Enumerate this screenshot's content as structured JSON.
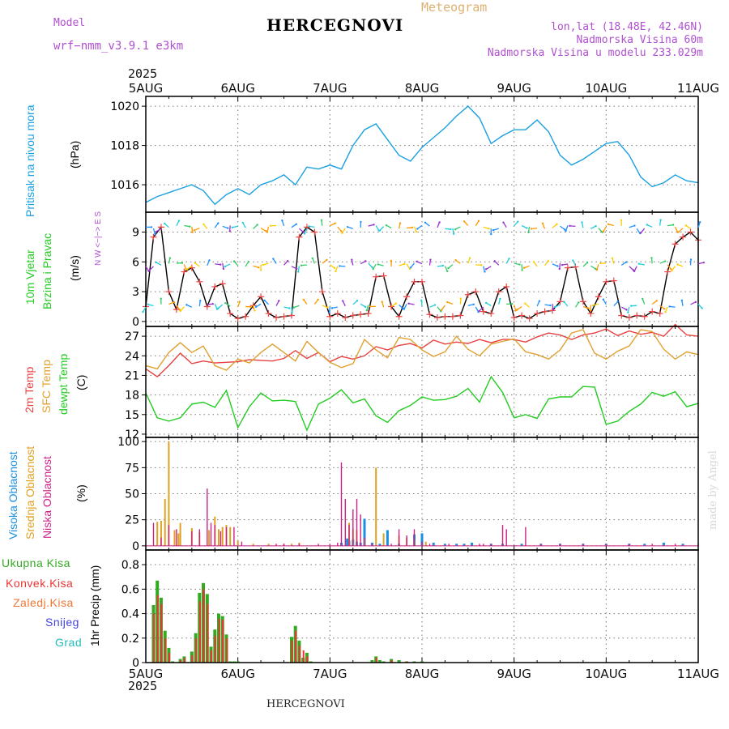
{
  "header": {
    "model_label": "Model",
    "model_name": "wrf−nmm_v3.9.1  e3km",
    "title": "HERCEGNOVI",
    "product": "Meteogram",
    "lonlat": "lon,lat (18.48E, 42.46N)",
    "elevation": "Nadmorska Visina 60m",
    "model_elevation": "Nadmorska Visina u modelu 233.029m",
    "year": "2025",
    "footer": "HERCEGNOVI",
    "credit": "made by Angel"
  },
  "colors": {
    "pressure": "#1aa0e0",
    "wind_speed": "#000000",
    "wind_marker": "#ee4444",
    "t2m": "#e84040",
    "sfc": "#e0a030",
    "dewpoint": "#22cc22",
    "high_cloud": "#1a90e0",
    "mid_cloud": "#e0a020",
    "low_cloud": "#cc2288",
    "total_precip": "#33aa22",
    "conv_precip": "#ee3333",
    "snow": "#4444dd",
    "hail": "#22bbbb"
  },
  "chart_data": [
    {
      "type": "line",
      "id": "pressure",
      "ylabel_name": "Pritisak na nivou mora",
      "ylabel_unit": "(hPa)",
      "ylim": [
        1014.6,
        1020.5
      ],
      "yticks": [
        1016,
        1018,
        1020
      ],
      "grid": true,
      "x_range": [
        0,
        144
      ],
      "x_categories": [
        "5AUG",
        "6AUG",
        "7AUG",
        "8AUG",
        "9AUG",
        "10AUG",
        "11AUG"
      ],
      "x_tick_positions": [
        0,
        24,
        48,
        72,
        96,
        120,
        144
      ],
      "series": [
        {
          "name": "MSLP",
          "x": [
            0,
            3,
            6,
            9,
            12,
            15,
            18,
            21,
            24,
            27,
            30,
            33,
            36,
            39,
            42,
            45,
            48,
            51,
            54,
            57,
            60,
            63,
            66,
            69,
            72,
            75,
            78,
            81,
            84,
            87,
            90,
            93,
            96,
            99,
            102,
            105,
            108,
            111,
            114,
            117,
            120,
            123,
            126,
            129,
            132,
            135,
            138,
            141,
            144
          ],
          "values": [
            1015.1,
            1015.4,
            1015.6,
            1015.8,
            1016.0,
            1015.7,
            1015.0,
            1015.5,
            1015.8,
            1015.5,
            1016.0,
            1016.2,
            1016.5,
            1016.0,
            1016.9,
            1016.8,
            1017.0,
            1016.8,
            1018.0,
            1018.8,
            1019.1,
            1018.3,
            1017.5,
            1017.2,
            1017.9,
            1018.4,
            1018.9,
            1019.5,
            1020.0,
            1019.4,
            1018.1,
            1018.5,
            1018.8,
            1018.8,
            1019.3,
            1018.7,
            1017.5,
            1017.0,
            1017.3,
            1017.7,
            1018.1,
            1018.2,
            1017.5,
            1016.4,
            1015.9,
            1016.1,
            1016.5,
            1016.2,
            1016.1
          ]
        }
      ]
    },
    {
      "type": "line",
      "id": "wind",
      "ylabel_name": "10m Vjetar",
      "ylabel_name2": "Brzina i Pravac",
      "ylabel_unit": "(m/s)",
      "compass": "N  W <−|−> E  S",
      "ylim": [
        -0.5,
        11
      ],
      "yticks": [
        0,
        3,
        6,
        9
      ],
      "grid": true,
      "x_range": [
        0,
        144
      ],
      "series": [
        {
          "name": "10m wind speed",
          "x": [
            0,
            2,
            4,
            6,
            8,
            10,
            12,
            14,
            16,
            18,
            20,
            22,
            24,
            26,
            28,
            30,
            32,
            34,
            36,
            38,
            40,
            42,
            44,
            46,
            48,
            50,
            52,
            54,
            56,
            58,
            60,
            62,
            64,
            66,
            68,
            70,
            72,
            74,
            76,
            78,
            80,
            82,
            84,
            86,
            88,
            90,
            92,
            94,
            96,
            98,
            100,
            102,
            104,
            106,
            108,
            110,
            112,
            114,
            116,
            118,
            120,
            122,
            124,
            126,
            128,
            130,
            132,
            134,
            136,
            138,
            140,
            142,
            144
          ],
          "values": [
            1.5,
            8.5,
            9.5,
            3,
            1.2,
            5,
            5.4,
            4,
            1.5,
            3.5,
            3.8,
            0.8,
            0.3,
            0.5,
            1.6,
            2.5,
            0.8,
            0.4,
            0.5,
            0.6,
            8.5,
            9.5,
            9,
            3,
            0.5,
            0.8,
            0.4,
            0.6,
            0.7,
            0.8,
            4.5,
            4.6,
            1.5,
            0.5,
            2.5,
            4,
            4,
            0.7,
            0.4,
            0.5,
            0.5,
            0.6,
            2.7,
            3,
            1,
            0.8,
            3,
            3.5,
            0.4,
            0.6,
            0.3,
            0.8,
            1,
            1.1,
            2,
            5.4,
            5.5,
            2,
            0.8,
            2.5,
            4,
            4.1,
            0.6,
            0.4,
            0.6,
            0.5,
            1,
            0.8,
            5,
            7.8,
            8.5,
            9,
            8.2
          ]
        }
      ]
    },
    {
      "type": "line",
      "id": "temperature",
      "ylabel_names": [
        "2m Temp",
        "SFC Temp",
        "dewpt Temp"
      ],
      "ylabel_unit": "(C)",
      "ylim": [
        11.5,
        28.5
      ],
      "yticks": [
        12,
        15,
        18,
        21,
        24,
        27
      ],
      "grid": true,
      "x_range": [
        0,
        144
      ],
      "series": [
        {
          "name": "2m Temp",
          "x": [
            0,
            3,
            6,
            9,
            12,
            15,
            18,
            21,
            24,
            27,
            30,
            33,
            36,
            39,
            42,
            45,
            48,
            51,
            54,
            57,
            60,
            63,
            66,
            69,
            72,
            75,
            78,
            81,
            84,
            87,
            90,
            93,
            96,
            99,
            102,
            105,
            108,
            111,
            114,
            117,
            120,
            123,
            126,
            129,
            132,
            135,
            138,
            141,
            144
          ],
          "values": [
            22,
            20.8,
            22.5,
            24.4,
            22.8,
            23.2,
            22.9,
            23,
            23.1,
            23.4,
            23.3,
            23.2,
            23.6,
            24.8,
            23.6,
            24.5,
            23.1,
            23.9,
            23.5,
            24,
            25.4,
            24.9,
            25.6,
            25.9,
            25.2,
            26.4,
            25.8,
            26.1,
            25.9,
            26.5,
            26,
            26.5,
            26.5,
            26.1,
            26.9,
            27.5,
            27.2,
            26.5,
            27.2,
            27.5,
            28.1,
            27.1,
            27.8,
            27.3,
            27.6,
            27,
            28.8,
            27.2,
            27
          ]
        },
        {
          "name": "SFC Temp",
          "x": [
            0,
            3,
            6,
            9,
            12,
            15,
            18,
            21,
            24,
            27,
            30,
            33,
            36,
            39,
            42,
            45,
            48,
            51,
            54,
            57,
            60,
            63,
            66,
            69,
            72,
            75,
            78,
            81,
            84,
            87,
            90,
            93,
            96,
            99,
            102,
            105,
            108,
            111,
            114,
            117,
            120,
            123,
            126,
            129,
            132,
            135,
            138,
            141,
            144
          ],
          "values": [
            22.5,
            22,
            24.5,
            26,
            24.5,
            25.5,
            22.5,
            21.8,
            23.5,
            22.9,
            24.5,
            25.8,
            24.5,
            23.2,
            26.2,
            24.5,
            23,
            22.2,
            22.8,
            26.5,
            24.9,
            23.7,
            26.8,
            26.5,
            24.9,
            23.9,
            24.6,
            27,
            25,
            24,
            25.8,
            26.2,
            26.6,
            24.6,
            24.2,
            23.5,
            24.9,
            27.5,
            28,
            24.4,
            23.5,
            24.7,
            25.5,
            28,
            27.7,
            25,
            23.5,
            24.6,
            24.2
          ]
        },
        {
          "name": "dewpt Temp",
          "x": [
            0,
            3,
            6,
            9,
            12,
            15,
            18,
            21,
            24,
            27,
            30,
            33,
            36,
            39,
            42,
            45,
            48,
            51,
            54,
            57,
            60,
            63,
            66,
            69,
            72,
            75,
            78,
            81,
            84,
            87,
            90,
            93,
            96,
            99,
            102,
            105,
            108,
            111,
            114,
            117,
            120,
            123,
            126,
            129,
            132,
            135,
            138,
            141,
            144
          ],
          "values": [
            18.3,
            14.5,
            14,
            14.5,
            16.6,
            16.9,
            16.1,
            18.7,
            13,
            16.2,
            18.3,
            17.1,
            17.2,
            17,
            12.6,
            16.6,
            17.5,
            18.8,
            16.8,
            17.4,
            14.8,
            13.8,
            15.6,
            16.4,
            17.7,
            17.2,
            17.3,
            17.8,
            19,
            16.9,
            20.8,
            18.4,
            14.5,
            15,
            14.4,
            17.4,
            17.7,
            17.7,
            19.3,
            19.2,
            13.5,
            14,
            15.5,
            16.6,
            18.4,
            17.8,
            18.5,
            16.2,
            16.7
          ]
        }
      ]
    },
    {
      "type": "bar",
      "id": "cloud",
      "ylabel_names": [
        "Visoka Oblacnost",
        "Srednja Oblacnost",
        "Niska Oblacnost"
      ],
      "ylabel_unit": "(%)",
      "ylim": [
        -4,
        104
      ],
      "yticks": [
        0,
        25,
        50,
        75,
        100
      ],
      "grid": true,
      "x_range": [
        0,
        144
      ],
      "series": [
        {
          "name": "Visoka Oblacnost",
          "x": [
            51,
            52.5,
            53,
            54,
            55,
            56,
            57,
            59,
            61,
            63,
            66,
            70,
            72,
            75,
            78,
            81,
            83,
            85,
            90,
            93,
            98,
            103,
            108,
            114,
            120,
            126,
            130,
            135,
            140
          ],
          "values": [
            3,
            7,
            5,
            6,
            4,
            3,
            26,
            3,
            2,
            15,
            2,
            11,
            12,
            3,
            2,
            2,
            2,
            3,
            2,
            2,
            2,
            2,
            2,
            2,
            2,
            2,
            2,
            3,
            2
          ]
        },
        {
          "name": "Srednja Oblacnost",
          "x": [
            3,
            4,
            5,
            6,
            7.5,
            8.5,
            9,
            12,
            14,
            16.5,
            18,
            19,
            20,
            21,
            22,
            24,
            28,
            32,
            36,
            38,
            40,
            53,
            54,
            55,
            57,
            60,
            62,
            66,
            68,
            70,
            73
          ],
          "values": [
            23,
            24,
            45,
            100,
            15,
            12,
            22,
            17,
            13,
            15,
            28,
            16,
            18,
            20,
            18,
            5,
            2,
            2,
            2,
            2,
            3,
            22,
            16,
            15,
            7,
            75,
            12,
            10,
            8,
            6,
            4
          ]
        },
        {
          "name": "Niska Oblacnost",
          "x": [
            2,
            4,
            6,
            8,
            12,
            14,
            16,
            17,
            18,
            19.5,
            21,
            23,
            25,
            34,
            36,
            40,
            45,
            48,
            50,
            51,
            52,
            53,
            54,
            55,
            56,
            57,
            59,
            64,
            66,
            68,
            70,
            72,
            74,
            79,
            87,
            88,
            90,
            93,
            94,
            99,
            103,
            108,
            114,
            120,
            126,
            132,
            138,
            144
          ],
          "values": [
            22,
            8,
            20,
            16,
            14,
            16,
            55,
            22,
            20,
            14,
            18,
            18,
            4,
            2,
            2,
            2,
            2,
            2,
            3,
            80,
            45,
            20,
            35,
            45,
            30,
            8,
            2,
            2,
            16,
            10,
            16,
            4,
            2,
            2,
            2,
            2,
            2,
            20,
            16,
            18,
            2,
            2,
            2,
            2,
            2,
            2,
            2,
            2
          ]
        }
      ]
    },
    {
      "type": "bar",
      "id": "precip",
      "ylabel_names": [
        "Ukupna Kisa",
        "Konvek.Kisa",
        "Zaledj.Kisa",
        "Snijeg",
        "Grad"
      ],
      "ylabel_unit": "1hr Precip (mm)",
      "ylim": [
        0,
        0.92
      ],
      "yticks": [
        0,
        0.2,
        0.4,
        0.6,
        0.8
      ],
      "grid": true,
      "x_range": [
        0,
        144
      ],
      "series": [
        {
          "name": "Ukupna Kisa",
          "x": [
            2,
            3,
            4,
            5,
            6,
            7,
            9,
            10,
            11,
            12,
            13,
            14,
            15,
            16,
            17,
            18,
            19,
            20,
            21,
            22,
            23,
            24,
            38,
            39,
            40,
            41,
            42,
            43,
            59,
            60,
            61,
            62,
            64,
            66,
            68,
            70,
            72
          ],
          "values": [
            0.47,
            0.67,
            0.53,
            0.26,
            0.12,
            0.01,
            0.03,
            0.05,
            0,
            0.09,
            0.24,
            0.57,
            0.65,
            0.56,
            0.13,
            0.27,
            0.4,
            0.38,
            0.23,
            0.01,
            0.01,
            0.01,
            0.21,
            0.3,
            0.18,
            0.04,
            0.08,
            0.01,
            0.02,
            0.05,
            0.02,
            0.01,
            0.03,
            0.02,
            0.01,
            0.01,
            0.01
          ]
        },
        {
          "name": "Konvek.Kisa",
          "x": [
            2,
            3,
            4,
            5,
            6,
            9,
            10,
            12,
            13,
            14,
            15,
            16,
            17,
            18,
            19,
            20,
            21,
            38,
            39,
            40,
            41,
            42,
            60,
            64,
            68
          ],
          "values": [
            0.4,
            0.55,
            0.48,
            0.2,
            0.08,
            0.02,
            0.04,
            0.06,
            0.2,
            0.5,
            0.6,
            0.48,
            0.1,
            0.22,
            0.36,
            0.35,
            0.2,
            0.18,
            0.26,
            0.14,
            0.1,
            0.05,
            0.04,
            0.02,
            0.01
          ]
        }
      ]
    }
  ]
}
